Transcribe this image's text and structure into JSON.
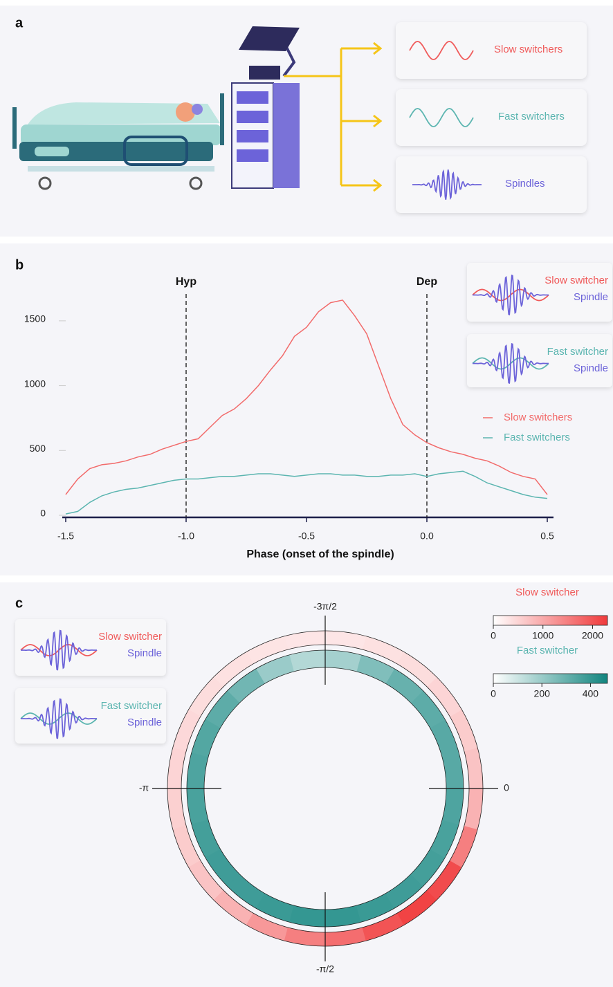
{
  "panel_a": {
    "label": "a",
    "outputs": [
      {
        "text": "Slow switchers",
        "color": "#f05a5a"
      },
      {
        "text": "Fast switchers",
        "color": "#5bb5b0"
      },
      {
        "text": "Spindles",
        "color": "#6c63d9"
      }
    ]
  },
  "chart_data": [
    {
      "type": "line",
      "panel": "b",
      "xlabel": "Phase (onset of the spindle)",
      "x": [
        -1.5,
        -1.45,
        -1.4,
        -1.35,
        -1.3,
        -1.25,
        -1.2,
        -1.15,
        -1.1,
        -1.05,
        -1.0,
        -0.95,
        -0.9,
        -0.85,
        -0.8,
        -0.75,
        -0.7,
        -0.65,
        -0.6,
        -0.55,
        -0.5,
        -0.45,
        -0.4,
        -0.35,
        -0.3,
        -0.25,
        -0.2,
        -0.15,
        -0.1,
        -0.05,
        0.0,
        0.05,
        0.1,
        0.15,
        0.2,
        0.25,
        0.3,
        0.35,
        0.4,
        0.45,
        0.5
      ],
      "series": [
        {
          "name": "Slow switchers",
          "color": "#f26b6b",
          "values": [
            160,
            280,
            360,
            390,
            400,
            420,
            450,
            470,
            510,
            540,
            570,
            590,
            680,
            770,
            820,
            900,
            1000,
            1120,
            1230,
            1380,
            1450,
            1570,
            1640,
            1660,
            1540,
            1400,
            1150,
            900,
            700,
            620,
            560,
            520,
            490,
            470,
            440,
            420,
            380,
            330,
            300,
            280,
            160
          ]
        },
        {
          "name": "Fast switchers",
          "color": "#5bb5b0",
          "values": [
            10,
            30,
            100,
            150,
            180,
            200,
            210,
            230,
            250,
            270,
            280,
            280,
            290,
            300,
            300,
            310,
            320,
            320,
            310,
            300,
            310,
            320,
            320,
            310,
            310,
            300,
            300,
            310,
            310,
            320,
            300,
            320,
            330,
            340,
            300,
            250,
            220,
            190,
            160,
            140,
            130
          ]
        }
      ],
      "xlim": [
        -1.55,
        0.55
      ],
      "xticks": [
        -1.5,
        {
          "value": -1,
          "label": "-1.0"
        },
        -0.5,
        {
          "value": 0,
          "label": "0.0"
        },
        0.5
      ],
      "ylim": [
        0,
        1750
      ],
      "yticks": [
        0,
        500,
        1000,
        1500
      ],
      "annotations": [
        {
          "text": "Hyp",
          "x": -1
        },
        {
          "text": "Dep",
          "x": 0
        }
      ],
      "insets": [
        [
          "Slow switcher",
          "Spindle"
        ],
        [
          "Fast switcher",
          "Spindle"
        ]
      ]
    },
    {
      "type": "polar_heatmap",
      "panel": "c",
      "thetalim": [
        -6.2832,
        0
      ],
      "thetaticks": [
        0,
        {
          "value": -1.5708,
          "label": "-π/2"
        },
        {
          "value": -3.1416,
          "label": "-π"
        },
        {
          "value": -4.7124,
          "label": "-3π/2"
        }
      ],
      "series": [
        {
          "name": "Slow switcher",
          "color": "#f03a3c",
          "clim": [
            0,
            2300
          ],
          "ticks": [
            0,
            1000,
            2000
          ],
          "values": [
            700,
            600,
            500,
            400,
            350,
            300,
            300,
            320,
            350,
            400,
            450,
            500,
            550,
            600,
            700,
            900,
            1200,
            1500,
            1700,
            2000,
            2200,
            2100,
            1500,
            900
          ]
        },
        {
          "name": "Fast switcher",
          "color": "#11857f",
          "clim": [
            0,
            470
          ],
          "ticks": [
            0,
            200,
            400
          ],
          "values": [
            330,
            330,
            320,
            300,
            250,
            180,
            150,
            200,
            280,
            320,
            340,
            350,
            360,
            370,
            380,
            380,
            390,
            400,
            400,
            390,
            380,
            370,
            360,
            350
          ]
        }
      ],
      "insets": [
        [
          "Slow switcher",
          "Spindle"
        ],
        [
          "Fast switcher",
          "Spindle"
        ]
      ]
    }
  ]
}
